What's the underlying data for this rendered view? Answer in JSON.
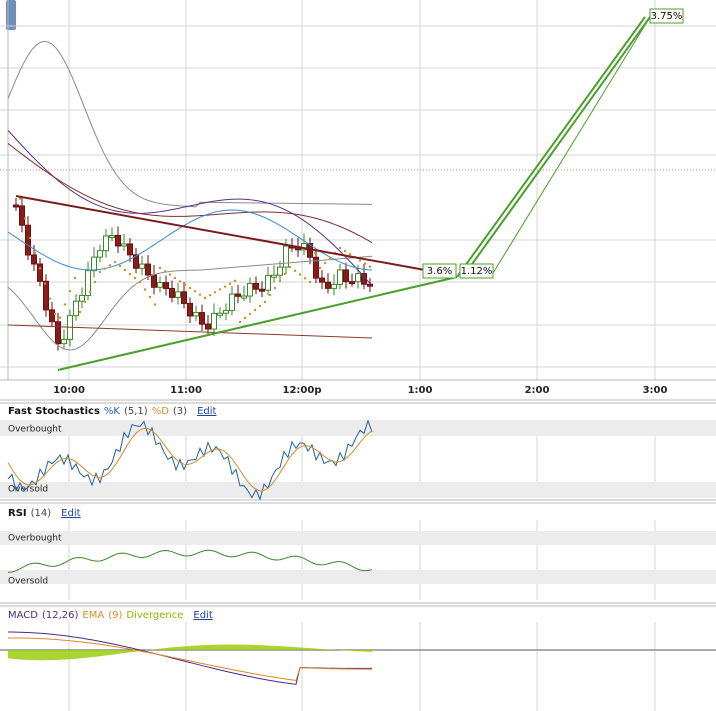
{
  "x_axis": {
    "labels": [
      "10:00",
      "11:00",
      "12:00p",
      "1:00",
      "2:00",
      "3:00"
    ]
  },
  "annotations": [
    "3.6%",
    "1.12%",
    "3.75%"
  ],
  "panels": [
    {
      "header": [
        {
          "text": "Fast Stochastics",
          "color": "#111111"
        },
        {
          "text": "%K",
          "color": "#1f5fa8"
        },
        {
          "text": "(5,1)",
          "color": "#444444"
        },
        {
          "text": "%D",
          "color": "#d88a2a"
        },
        {
          "text": "(3)",
          "color": "#444444"
        }
      ],
      "edit": "Edit",
      "levels": [
        "Overbought",
        "Oversold"
      ]
    },
    {
      "header": [
        {
          "text": "RSI",
          "color": "#111111"
        },
        {
          "text": "(14)",
          "color": "#444444"
        }
      ],
      "edit": "Edit",
      "levels": [
        "Overbought",
        "Oversold"
      ]
    },
    {
      "header": [
        {
          "text": "MACD",
          "color": "#4b2a8c"
        },
        {
          "text": "(12,26)",
          "color": "#4b2a8c"
        },
        {
          "text": "EMA",
          "color": "#d88a2a"
        },
        {
          "text": "(9)",
          "color": "#d88a2a"
        },
        {
          "text": "Divergence",
          "color": "#8ab800"
        }
      ],
      "edit": "Edit",
      "levels": []
    }
  ]
}
